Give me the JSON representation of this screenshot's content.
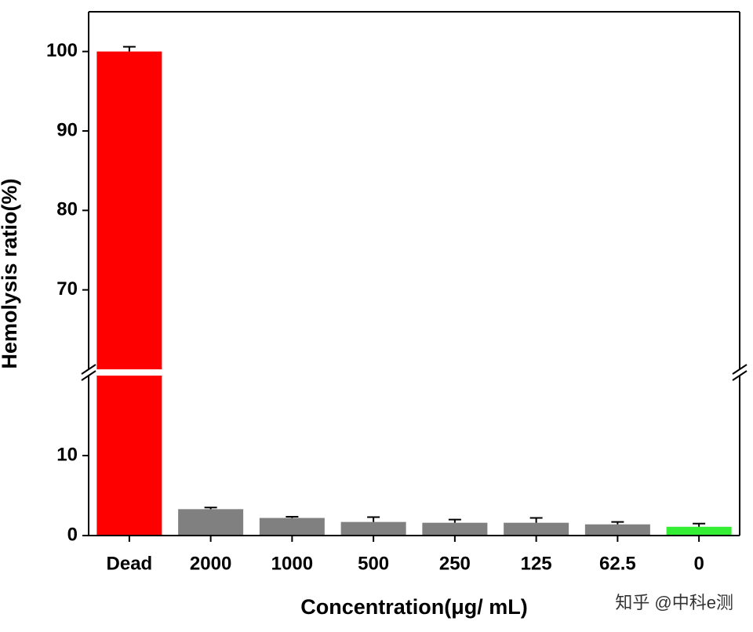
{
  "chart_data": {
    "type": "bar",
    "x_label": "Concentration(μg/ mL)",
    "y_label": "Hemolysis ratio(%)",
    "categories": [
      "Dead",
      "2000",
      "1000",
      "500",
      "250",
      "125",
      "62.5",
      "0"
    ],
    "values": [
      100,
      3.3,
      2.2,
      1.7,
      1.6,
      1.6,
      1.4,
      1.1
    ],
    "errors": [
      0.6,
      0.2,
      0.15,
      0.6,
      0.4,
      0.6,
      0.3,
      0.4
    ],
    "colors": [
      "#ff0000",
      "#808080",
      "#808080",
      "#808080",
      "#808080",
      "#808080",
      "#808080",
      "#33ee33"
    ],
    "y_segments": [
      {
        "ylim": [
          0,
          20
        ],
        "yticks": [
          0,
          10
        ]
      },
      {
        "ylim": [
          60,
          105
        ],
        "yticks": [
          70,
          80,
          90,
          100
        ]
      }
    ],
    "annotation": "知乎 @中科e测"
  }
}
